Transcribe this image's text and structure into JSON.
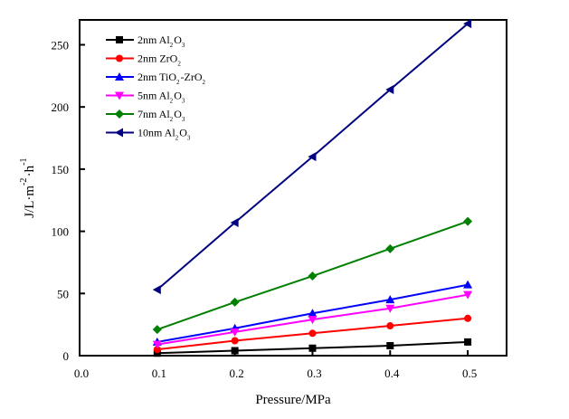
{
  "chart_data": {
    "type": "line",
    "title": "",
    "xlabel": "Pressure/MPa",
    "ylabel": {
      "parts": [
        {
          "text": "J/L·m",
          "sup": ""
        },
        {
          "text": "",
          "sup": "-2"
        },
        {
          "text": "·h",
          "sup": ""
        },
        {
          "text": "",
          "sup": "-1"
        }
      ],
      "plain": "J/L·m^-2·h^-1"
    },
    "xlim": [
      0.0,
      0.55
    ],
    "ylim": [
      0,
      270
    ],
    "xticks": [
      0.0,
      0.1,
      0.2,
      0.3,
      0.4,
      0.5
    ],
    "xtick_labels": [
      "0.0",
      "0.1",
      "0.2",
      "0.3",
      "0.4",
      "0.5"
    ],
    "yticks": [
      0,
      50,
      100,
      150,
      200,
      250
    ],
    "ytick_labels": [
      "0",
      "50",
      "100",
      "150",
      "200",
      "250"
    ],
    "grid": false,
    "legend_position": "top-left",
    "x": [
      0.1,
      0.2,
      0.3,
      0.4,
      0.5
    ],
    "series": [
      {
        "name": "2nm Al2O3",
        "label_parts": [
          [
            "2nm Al",
            ""
          ],
          [
            "",
            "2"
          ],
          [
            "O",
            ""
          ],
          [
            "",
            "3"
          ]
        ],
        "color": "#000000",
        "marker": "square",
        "values": [
          2,
          4,
          6,
          8,
          11
        ]
      },
      {
        "name": "2nm ZrO2",
        "label_parts": [
          [
            "2nm ZrO",
            ""
          ],
          [
            "",
            "2"
          ]
        ],
        "color": "#ff0000",
        "marker": "circle",
        "values": [
          5,
          12,
          18,
          24,
          30
        ]
      },
      {
        "name": "2nm TiO2-ZrO2",
        "label_parts": [
          [
            "2nm TiO",
            ""
          ],
          [
            "",
            "2"
          ],
          [
            "-ZrO",
            ""
          ],
          [
            "",
            "2"
          ]
        ],
        "color": "#0000ff",
        "marker": "triangle-up",
        "values": [
          11,
          22,
          34,
          45,
          57
        ]
      },
      {
        "name": "5nm Al2O3",
        "label_parts": [
          [
            "5nm Al",
            ""
          ],
          [
            "",
            "2"
          ],
          [
            "O",
            ""
          ],
          [
            "",
            "3"
          ]
        ],
        "color": "#ff00ff",
        "marker": "triangle-down",
        "values": [
          9,
          19,
          29,
          38,
          49
        ]
      },
      {
        "name": "7nm Al2O3",
        "label_parts": [
          [
            "7nm Al",
            ""
          ],
          [
            "",
            "2"
          ],
          [
            "O",
            ""
          ],
          [
            "",
            "3"
          ]
        ],
        "color": "#008000",
        "marker": "diamond",
        "values": [
          21,
          43,
          64,
          86,
          108
        ]
      },
      {
        "name": "10nm Al2O3",
        "label_parts": [
          [
            "10nm Al",
            ""
          ],
          [
            "",
            "2"
          ],
          [
            "O",
            ""
          ],
          [
            "",
            "3"
          ]
        ],
        "color": "#000080",
        "marker": "triangle-left",
        "values": [
          53,
          107,
          160,
          214,
          267
        ]
      }
    ]
  }
}
